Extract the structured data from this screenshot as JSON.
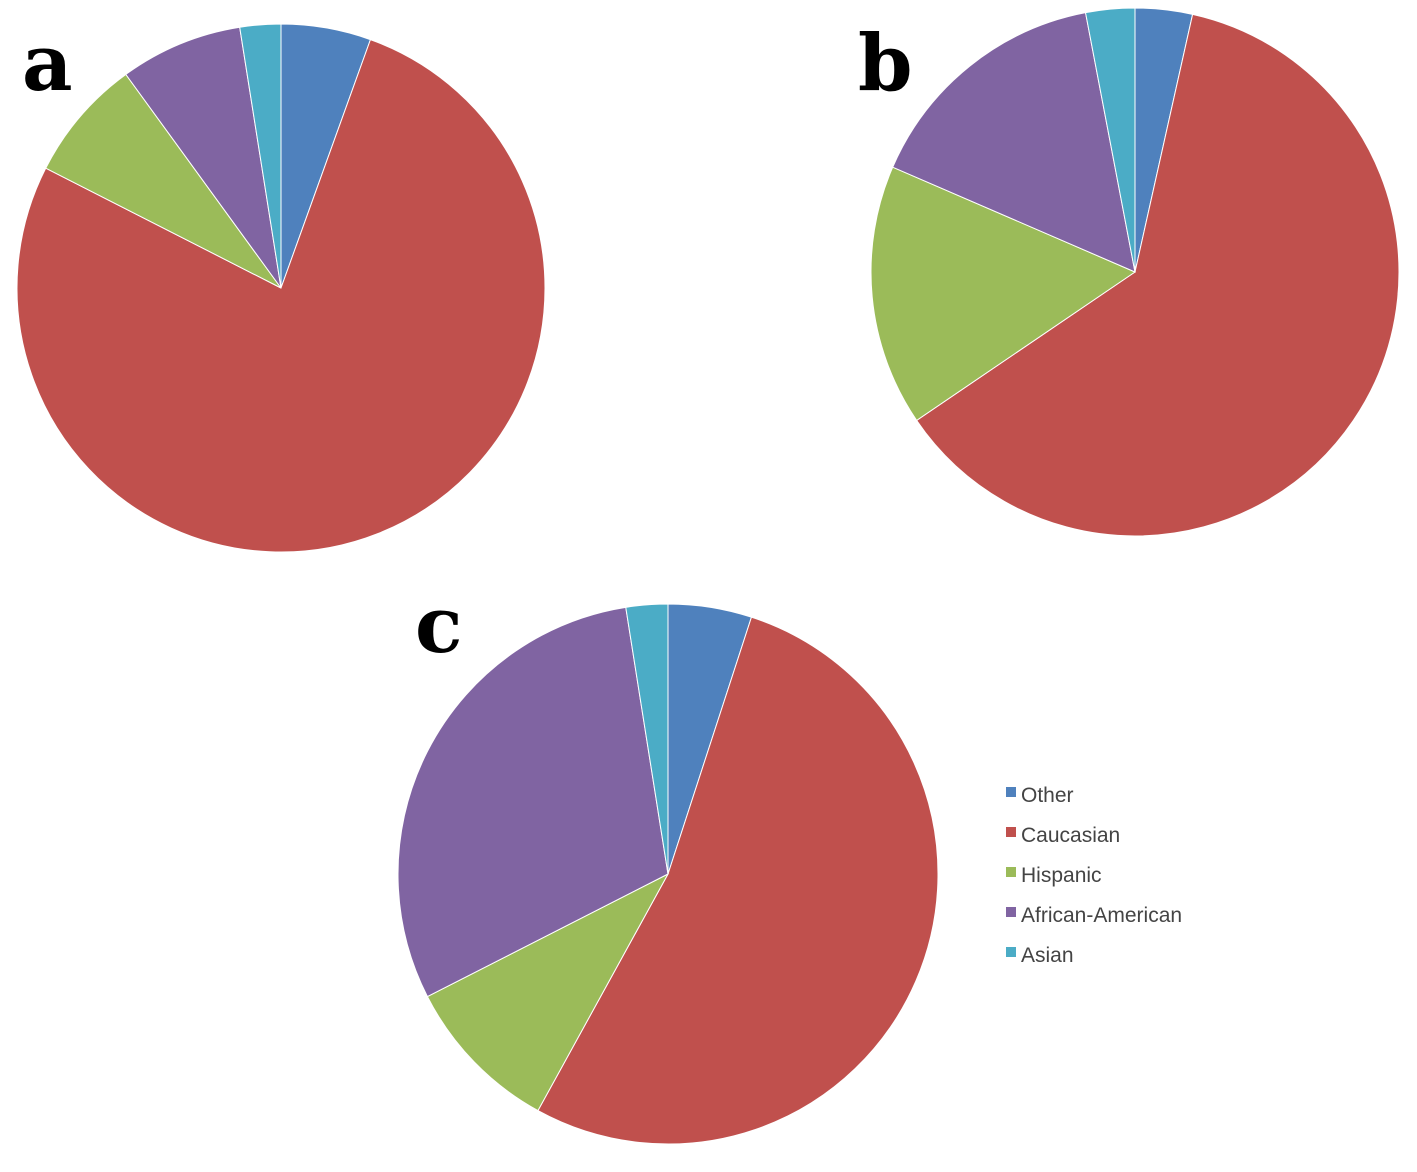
{
  "chart_data": [
    {
      "type": "pie",
      "panel_label": "a",
      "start_angle_deg": 0,
      "direction": "clockwise",
      "slices": [
        {
          "category": "Other",
          "value": 5.5
        },
        {
          "category": "Caucasian",
          "value": 77
        },
        {
          "category": "Hispanic",
          "value": 7.5
        },
        {
          "category": "African-American",
          "value": 7.5
        },
        {
          "category": "Asian",
          "value": 2.5
        }
      ]
    },
    {
      "type": "pie",
      "panel_label": "b",
      "start_angle_deg": 0,
      "direction": "clockwise",
      "slices": [
        {
          "category": "Other",
          "value": 3.5
        },
        {
          "category": "Caucasian",
          "value": 62
        },
        {
          "category": "Hispanic",
          "value": 16
        },
        {
          "category": "African-American",
          "value": 15.5
        },
        {
          "category": "Asian",
          "value": 3
        }
      ]
    },
    {
      "type": "pie",
      "panel_label": "c",
      "start_angle_deg": 0,
      "direction": "clockwise",
      "slices": [
        {
          "category": "Other",
          "value": 5
        },
        {
          "category": "Caucasian",
          "value": 53
        },
        {
          "category": "Hispanic",
          "value": 9.5
        },
        {
          "category": "African-American",
          "value": 30
        },
        {
          "category": "Asian",
          "value": 2.5
        }
      ]
    }
  ],
  "legend": {
    "placement": "right of chart c",
    "items": [
      {
        "label": "Other",
        "color": "#4f81bd"
      },
      {
        "label": "Caucasian",
        "color": "#c0504d"
      },
      {
        "label": "Hispanic",
        "color": "#9bbb59"
      },
      {
        "label": "African-American",
        "color": "#8064a2"
      },
      {
        "label": "Asian",
        "color": "#4bacc6"
      }
    ]
  }
}
